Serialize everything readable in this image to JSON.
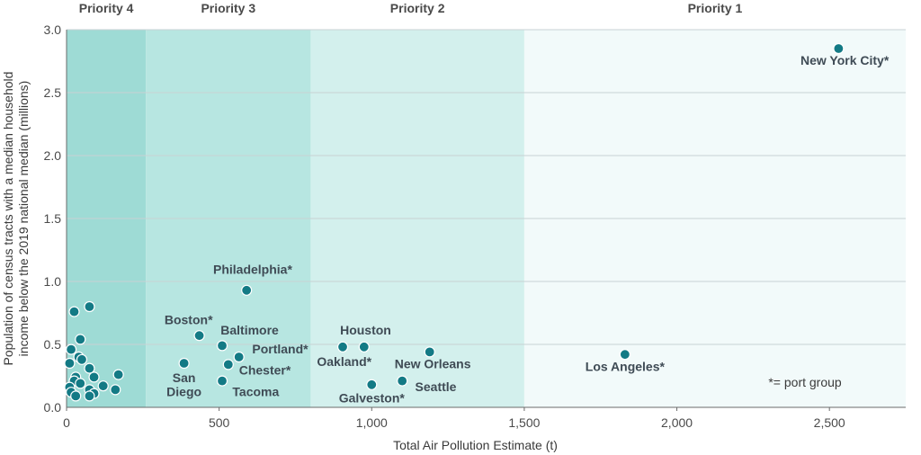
{
  "chart_data": {
    "type": "scatter",
    "xlabel": "Total Air Pollution Estimate (t)",
    "ylabel_lines": [
      "Population of census tracts with a median household",
      "income below the 2019 national median (millions)"
    ],
    "xlim": [
      0,
      2750
    ],
    "ylim": [
      0,
      3.0
    ],
    "x_ticks": [
      0,
      500,
      1000,
      1500,
      2000,
      2500
    ],
    "x_tick_labels": [
      "0",
      "500",
      "1,000",
      "1,500",
      "2,000",
      "2,500"
    ],
    "y_ticks": [
      0,
      0.5,
      1.0,
      1.5,
      2.0,
      2.5,
      3.0
    ],
    "y_tick_labels": [
      "0.0",
      "0.5",
      "1.0",
      "1.5",
      "2.0",
      "2.5",
      "3.0"
    ],
    "grid": "horizontal",
    "bands": [
      {
        "label": "Priority 4",
        "x0": 0,
        "x1": 260,
        "color": "#9edbd5"
      },
      {
        "label": "Priority 3",
        "x0": 260,
        "x1": 800,
        "color": "#b7e6e1"
      },
      {
        "label": "Priority 2",
        "x0": 800,
        "x1": 1500,
        "color": "#d3f0ed"
      },
      {
        "label": "Priority 1",
        "x0": 1500,
        "x1": 2750,
        "color": "#f2fafa"
      }
    ],
    "points": [
      {
        "x": 2530,
        "y": 2.85,
        "label": "New York City*",
        "lx": 2550,
        "ly": 2.72,
        "anchor": "middle"
      },
      {
        "x": 1830,
        "y": 0.42,
        "label": "Los Angeles*",
        "lx": 1830,
        "ly": 0.29,
        "anchor": "middle"
      },
      {
        "x": 590,
        "y": 0.93,
        "label": "Philadelphia*",
        "lx": 610,
        "ly": 1.06,
        "anchor": "middle"
      },
      {
        "x": 435,
        "y": 0.57,
        "label": "Boston*",
        "lx": 400,
        "ly": 0.66,
        "anchor": "middle"
      },
      {
        "x": 510,
        "y": 0.49,
        "label": "Baltimore",
        "lx": 600,
        "ly": 0.58,
        "anchor": "middle"
      },
      {
        "x": 565,
        "y": 0.4,
        "label": "Portland*",
        "lx": 700,
        "ly": 0.43,
        "anchor": "middle"
      },
      {
        "x": 530,
        "y": 0.34,
        "label": "Chester*",
        "lx": 650,
        "ly": 0.26,
        "anchor": "middle"
      },
      {
        "x": 385,
        "y": 0.35,
        "label": "San",
        "lx": 385,
        "ly": 0.2,
        "anchor": "middle"
      },
      {
        "x": 510,
        "y": 0.21,
        "label": "Tacoma",
        "lx": 620,
        "ly": 0.09,
        "anchor": "middle"
      },
      {
        "x": 905,
        "y": 0.48,
        "label": "Houston",
        "lx": 980,
        "ly": 0.58,
        "anchor": "middle"
      },
      {
        "x": 975,
        "y": 0.48,
        "label": "Oakland*",
        "lx": 910,
        "ly": 0.33,
        "anchor": "middle"
      },
      {
        "x": 1190,
        "y": 0.44,
        "label": "New Orleans",
        "lx": 1200,
        "ly": 0.31,
        "anchor": "middle"
      },
      {
        "x": 1100,
        "y": 0.21,
        "label": "Seattle",
        "lx": 1210,
        "ly": 0.13,
        "anchor": "middle"
      },
      {
        "x": 1000,
        "y": 0.18,
        "label": "Galveston*",
        "lx": 1000,
        "ly": 0.04,
        "anchor": "middle"
      },
      {
        "x": 75,
        "y": 0.8
      },
      {
        "x": 25,
        "y": 0.76
      },
      {
        "x": 45,
        "y": 0.54
      },
      {
        "x": 15,
        "y": 0.46
      },
      {
        "x": 40,
        "y": 0.4
      },
      {
        "x": 50,
        "y": 0.38
      },
      {
        "x": 10,
        "y": 0.35
      },
      {
        "x": 75,
        "y": 0.31
      },
      {
        "x": 170,
        "y": 0.26
      },
      {
        "x": 90,
        "y": 0.24
      },
      {
        "x": 30,
        "y": 0.24
      },
      {
        "x": 25,
        "y": 0.21
      },
      {
        "x": 45,
        "y": 0.19
      },
      {
        "x": 120,
        "y": 0.17
      },
      {
        "x": 10,
        "y": 0.16
      },
      {
        "x": 15,
        "y": 0.12
      },
      {
        "x": 75,
        "y": 0.14
      },
      {
        "x": 160,
        "y": 0.14
      },
      {
        "x": 90,
        "y": 0.11
      },
      {
        "x": 30,
        "y": 0.09
      },
      {
        "x": 75,
        "y": 0.09
      }
    ],
    "extra_labels": [
      {
        "text": "Diego",
        "x": 385,
        "y": 0.09,
        "anchor": "middle"
      }
    ],
    "note": "*= port group",
    "note_pos": {
      "x": 2420,
      "y": 0.2
    },
    "point_color": "#137a85"
  }
}
